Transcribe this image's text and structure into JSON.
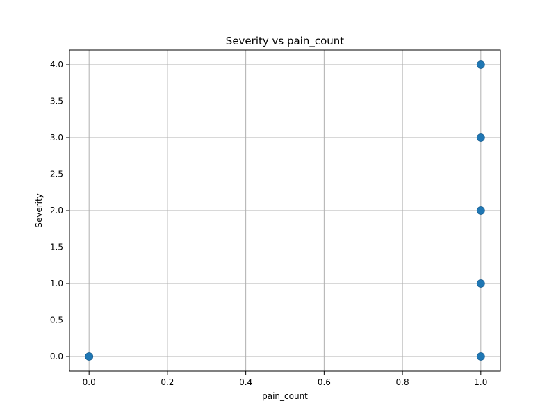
{
  "chart_data": {
    "type": "scatter",
    "title": "Severity vs pain_count",
    "xlabel": "pain_count",
    "ylabel": "Severity",
    "xlim": [
      -0.05,
      1.05
    ],
    "ylim": [
      -0.2,
      4.2
    ],
    "xticks": [
      0.0,
      0.2,
      0.4,
      0.6,
      0.8,
      1.0
    ],
    "yticks": [
      0.0,
      0.5,
      1.0,
      1.5,
      2.0,
      2.5,
      3.0,
      3.5,
      4.0
    ],
    "xtick_labels": [
      "0.0",
      "0.2",
      "0.4",
      "0.6",
      "0.8",
      "1.0"
    ],
    "ytick_labels": [
      "0.0",
      "0.5",
      "1.0",
      "1.5",
      "2.0",
      "2.5",
      "3.0",
      "3.5",
      "4.0"
    ],
    "grid": true,
    "marker_color": "#1f77b4",
    "points": [
      {
        "x": 0,
        "y": 0
      },
      {
        "x": 1,
        "y": 0
      },
      {
        "x": 1,
        "y": 1
      },
      {
        "x": 1,
        "y": 2
      },
      {
        "x": 1,
        "y": 3
      },
      {
        "x": 1,
        "y": 4
      }
    ]
  }
}
